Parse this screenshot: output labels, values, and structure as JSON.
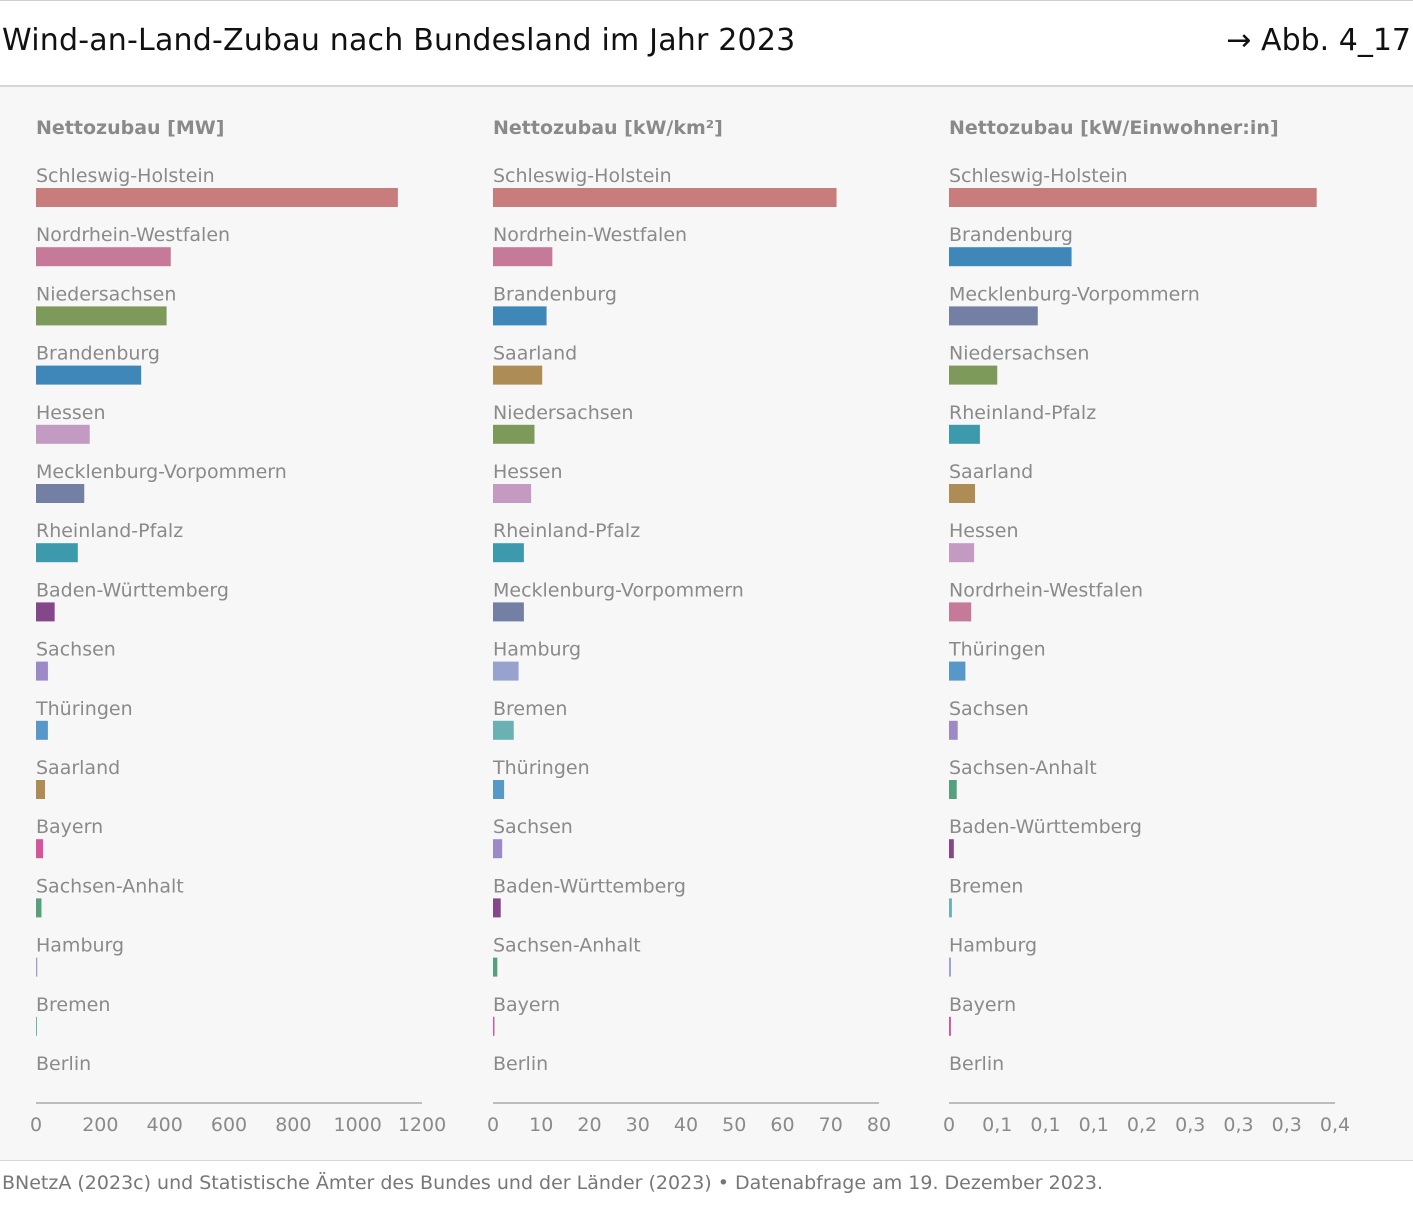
{
  "header": {
    "title": "Wind-an-Land-Zubau nach Bundesland im Jahr 2023",
    "figure_ref": "→ Abb. 4_17"
  },
  "source": "BNetzA (2023c) und Statistische Ämter des Bundes und der Länder (2023) • Datenabfrage am 19. Dezember 2023.",
  "colors": {
    "Schleswig-Holstein": "#c97c7c",
    "Nordrhein-Westfalen": "#c57a9a",
    "Niedersachsen": "#7e9a5a",
    "Brandenburg": "#3f87b8",
    "Hessen": "#c29ac2",
    "Mecklenburg-Vorpommern": "#7380a3",
    "Rheinland-Pfalz": "#3d9aac",
    "Baden-Württemberg": "#844789",
    "Sachsen": "#9c8ac6",
    "Thüringen": "#5898c8",
    "Saarland": "#ad8c56",
    "Bayern": "#d5559c",
    "Sachsen-Anhalt": "#58a07c",
    "Hamburg": "#98a2cf",
    "Bremen": "#6bb1b4",
    "Berlin": "#b0b0b0"
  },
  "chart_data": [
    {
      "type": "bar",
      "orientation": "horizontal",
      "title": "Nettozubau [MW]",
      "categories": [
        "Schleswig-Holstein",
        "Nordrhein-Westfalen",
        "Niedersachsen",
        "Brandenburg",
        "Hessen",
        "Mecklenburg-Vorpommern",
        "Rheinland-Pfalz",
        "Baden-Württemberg",
        "Sachsen",
        "Thüringen",
        "Saarland",
        "Bayern",
        "Sachsen-Anhalt",
        "Hamburg",
        "Bremen",
        "Berlin"
      ],
      "values": [
        1125,
        419,
        406,
        327,
        167,
        150,
        130,
        58,
        37,
        37,
        28,
        22,
        17,
        4,
        3,
        0
      ],
      "xlim": [
        0,
        1200
      ],
      "xticks": [
        "0",
        "200",
        "400",
        "600",
        "800",
        "1000",
        "1200"
      ]
    },
    {
      "type": "bar",
      "orientation": "horizontal",
      "title": "Nettozubau [kW/km²]",
      "categories": [
        "Schleswig-Holstein",
        "Nordrhein-Westfalen",
        "Brandenburg",
        "Saarland",
        "Niedersachsen",
        "Hessen",
        "Rheinland-Pfalz",
        "Mecklenburg-Vorpommern",
        "Hamburg",
        "Bremen",
        "Thüringen",
        "Sachsen",
        "Baden-Württemberg",
        "Sachsen-Anhalt",
        "Bayern",
        "Berlin"
      ],
      "values": [
        71.2,
        12.3,
        11.1,
        10.2,
        8.6,
        7.9,
        6.4,
        6.4,
        5.3,
        4.3,
        2.3,
        1.9,
        1.6,
        0.9,
        0.3,
        0
      ],
      "xlim": [
        0,
        80
      ],
      "xticks": [
        "0",
        "10",
        "20",
        "30",
        "40",
        "50",
        "60",
        "70",
        "80"
      ]
    },
    {
      "type": "bar",
      "orientation": "horizontal",
      "title": "Nettozubau [kW/Einwohner:in]",
      "categories": [
        "Schleswig-Holstein",
        "Brandenburg",
        "Mecklenburg-Vorpommern",
        "Niedersachsen",
        "Rheinland-Pfalz",
        "Saarland",
        "Hessen",
        "Nordrhein-Westfalen",
        "Thüringen",
        "Sachsen",
        "Sachsen-Anhalt",
        "Baden-Württemberg",
        "Bremen",
        "Hamburg",
        "Bayern",
        "Berlin"
      ],
      "values": [
        0.381,
        0.127,
        0.092,
        0.05,
        0.032,
        0.027,
        0.026,
        0.023,
        0.017,
        0.009,
        0.008,
        0.005,
        0.003,
        0.002,
        0.002,
        0
      ],
      "xlim": [
        0,
        0.4
      ],
      "xticks": [
        "0",
        "0,1",
        "0,1",
        "0,1",
        "0,2",
        "0,3",
        "0,3",
        "0,3",
        "0,4"
      ]
    }
  ]
}
